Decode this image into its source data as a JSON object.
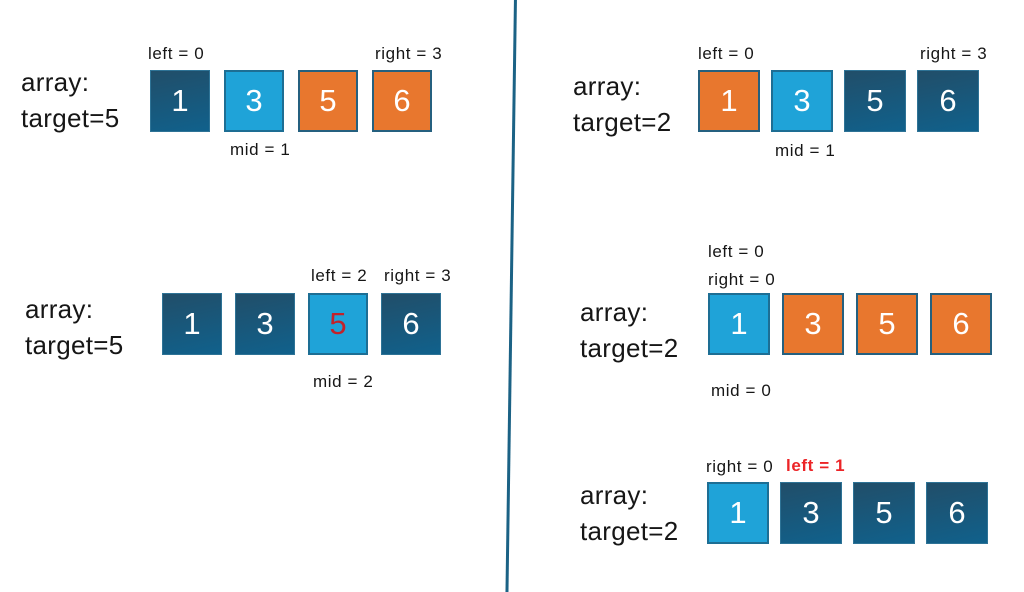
{
  "palette": {
    "background": "#ffffff",
    "text": "#161616",
    "divider": "#1b6285",
    "dark_box_top": "#214e69",
    "dark_box_bottom": "#10618c",
    "dark_box_border": "#2e7396",
    "light_box": "#1fa3d8",
    "light_box_border": "#1d6e94",
    "orange_box": "#e8772e",
    "orange_box_border": "#25607f",
    "red_number": "#c2222a",
    "red_label": "#ec2427",
    "box_number": "#ffffff"
  },
  "diagrams": [
    {
      "title_line1": "array:",
      "title_line2": "target=5",
      "top_labels": [
        {
          "text": "left = 0",
          "color": "black"
        },
        {
          "text": "right = 3",
          "color": "black"
        }
      ],
      "boxes": [
        {
          "value": "1",
          "state": "dark"
        },
        {
          "value": "3",
          "state": "light"
        },
        {
          "value": "5",
          "state": "orange"
        },
        {
          "value": "6",
          "state": "orange"
        }
      ],
      "bottom_label": "mid = 1"
    },
    {
      "title_line1": "array:",
      "title_line2": "target=5",
      "top_labels": [
        {
          "text": "left = 2",
          "color": "black"
        },
        {
          "text": "right = 3",
          "color": "black"
        }
      ],
      "boxes": [
        {
          "value": "1",
          "state": "dark"
        },
        {
          "value": "3",
          "state": "dark"
        },
        {
          "value": "5",
          "state": "light-red"
        },
        {
          "value": "6",
          "state": "dark"
        }
      ],
      "bottom_label": "mid = 2"
    },
    {
      "title_line1": "array:",
      "title_line2": "target=2",
      "top_labels": [
        {
          "text": "left = 0",
          "color": "black"
        },
        {
          "text": "right = 3",
          "color": "black"
        }
      ],
      "boxes": [
        {
          "value": "1",
          "state": "orange"
        },
        {
          "value": "3",
          "state": "light"
        },
        {
          "value": "5",
          "state": "dark"
        },
        {
          "value": "6",
          "state": "dark"
        }
      ],
      "bottom_label": "mid = 1"
    },
    {
      "title_line1": "array:",
      "title_line2": "target=2",
      "top_labels": [
        {
          "text": "left = 0",
          "color": "black"
        },
        {
          "text": "right = 0",
          "color": "black"
        }
      ],
      "boxes": [
        {
          "value": "1",
          "state": "light"
        },
        {
          "value": "3",
          "state": "orange"
        },
        {
          "value": "5",
          "state": "orange"
        },
        {
          "value": "6",
          "state": "orange"
        }
      ],
      "bottom_label": "mid = 0"
    },
    {
      "title_line1": "array:",
      "title_line2": "target=2",
      "top_labels": [
        {
          "text": "right = 0",
          "color": "black"
        },
        {
          "text": "left = 1",
          "color": "red"
        }
      ],
      "boxes": [
        {
          "value": "1",
          "state": "light"
        },
        {
          "value": "3",
          "state": "dark"
        },
        {
          "value": "5",
          "state": "dark"
        },
        {
          "value": "6",
          "state": "dark"
        }
      ]
    }
  ]
}
